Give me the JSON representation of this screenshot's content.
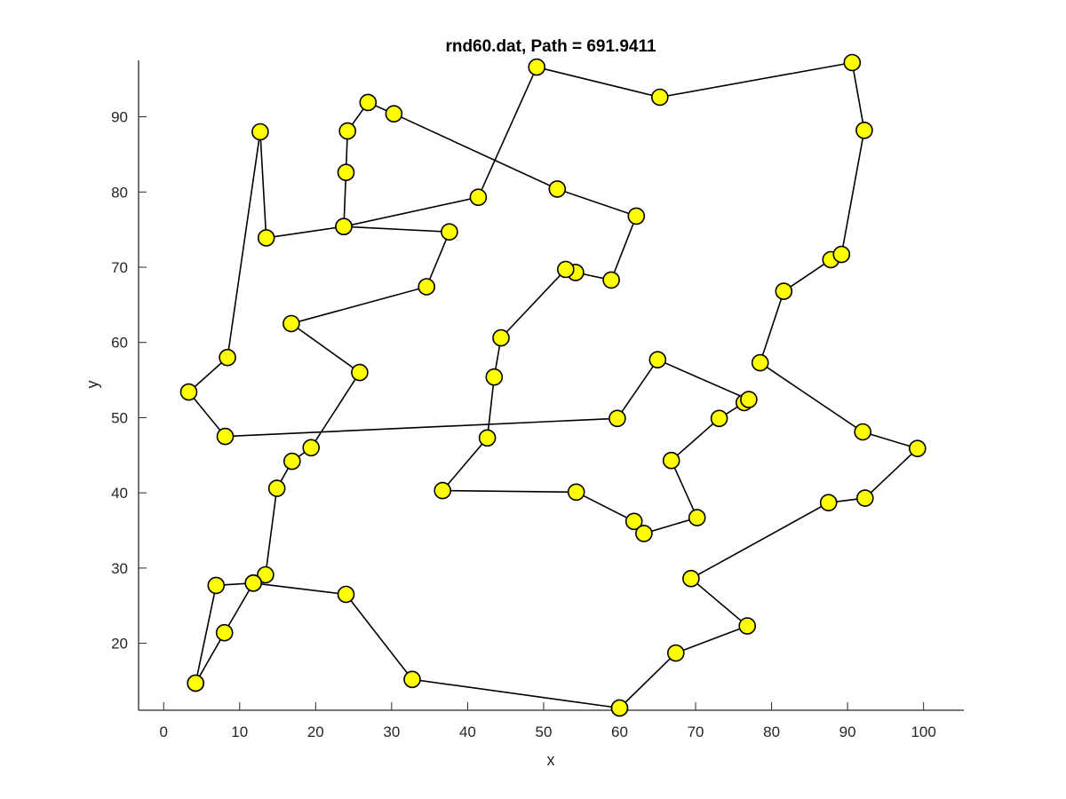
{
  "chart_data": {
    "type": "line",
    "title": "rnd60.dat, Path = 691.9411",
    "xlabel": "x",
    "ylabel": "y",
    "xlim": [
      -3.3,
      105.3
    ],
    "ylim": [
      11.1,
      97.5
    ],
    "xticks": [
      0,
      10,
      20,
      30,
      40,
      50,
      60,
      70,
      80,
      90,
      100
    ],
    "yticks": [
      20,
      30,
      40,
      50,
      60,
      70,
      80,
      90
    ],
    "grid": false,
    "legend": "none",
    "marker": "circle",
    "colors": {
      "marker_fill": "#ffff00",
      "marker_edge": "#000000",
      "line": "#000000",
      "axis": "#262626"
    },
    "series": [
      {
        "x": [
          60.0,
          67.4,
          76.8,
          69.4,
          87.5,
          92.3,
          99.2,
          92.0,
          78.5,
          81.6,
          87.8,
          89.2,
          92.2,
          90.6,
          65.3,
          49.1,
          41.4,
          23.7,
          24.0,
          24.2,
          26.9,
          30.3,
          51.8,
          62.2,
          58.9,
          54.2,
          52.9,
          44.4,
          43.5,
          42.6,
          36.7,
          54.3,
          61.9,
          63.2,
          70.2,
          66.8,
          73.1,
          76.4,
          77.0,
          65.0,
          59.7,
          8.1,
          3.3,
          8.4,
          12.7,
          13.5,
          23.7,
          37.6,
          34.6,
          16.8,
          25.8,
          19.4,
          16.9,
          14.9,
          13.4,
          11.8,
          24.0,
          32.7,
          60.0
        ],
        "y": [
          11.4,
          18.7,
          22.3,
          28.6,
          38.7,
          39.3,
          45.9,
          48.1,
          57.3,
          66.8,
          71.0,
          71.7,
          88.2,
          97.2,
          92.6,
          96.6,
          79.3,
          75.4,
          82.6,
          88.1,
          91.9,
          90.4,
          80.4,
          76.8,
          68.3,
          69.3,
          69.7,
          60.6,
          55.4,
          47.3,
          40.3,
          40.1,
          36.2,
          34.6,
          36.7,
          44.3,
          49.9,
          52.0,
          52.4,
          57.7,
          49.9,
          47.5,
          53.4,
          58.0,
          88.0,
          73.9,
          75.4,
          74.7,
          67.4,
          62.5,
          56.0,
          46.0,
          44.2,
          40.6,
          29.1,
          28.0,
          26.5,
          15.2,
          11.4
        ]
      },
      {
        "x": [
          4.2,
          6.9,
          11.8,
          8.0,
          4.2
        ],
        "y": [
          14.7,
          27.7,
          28.0,
          21.4,
          14.7
        ]
      }
    ]
  }
}
